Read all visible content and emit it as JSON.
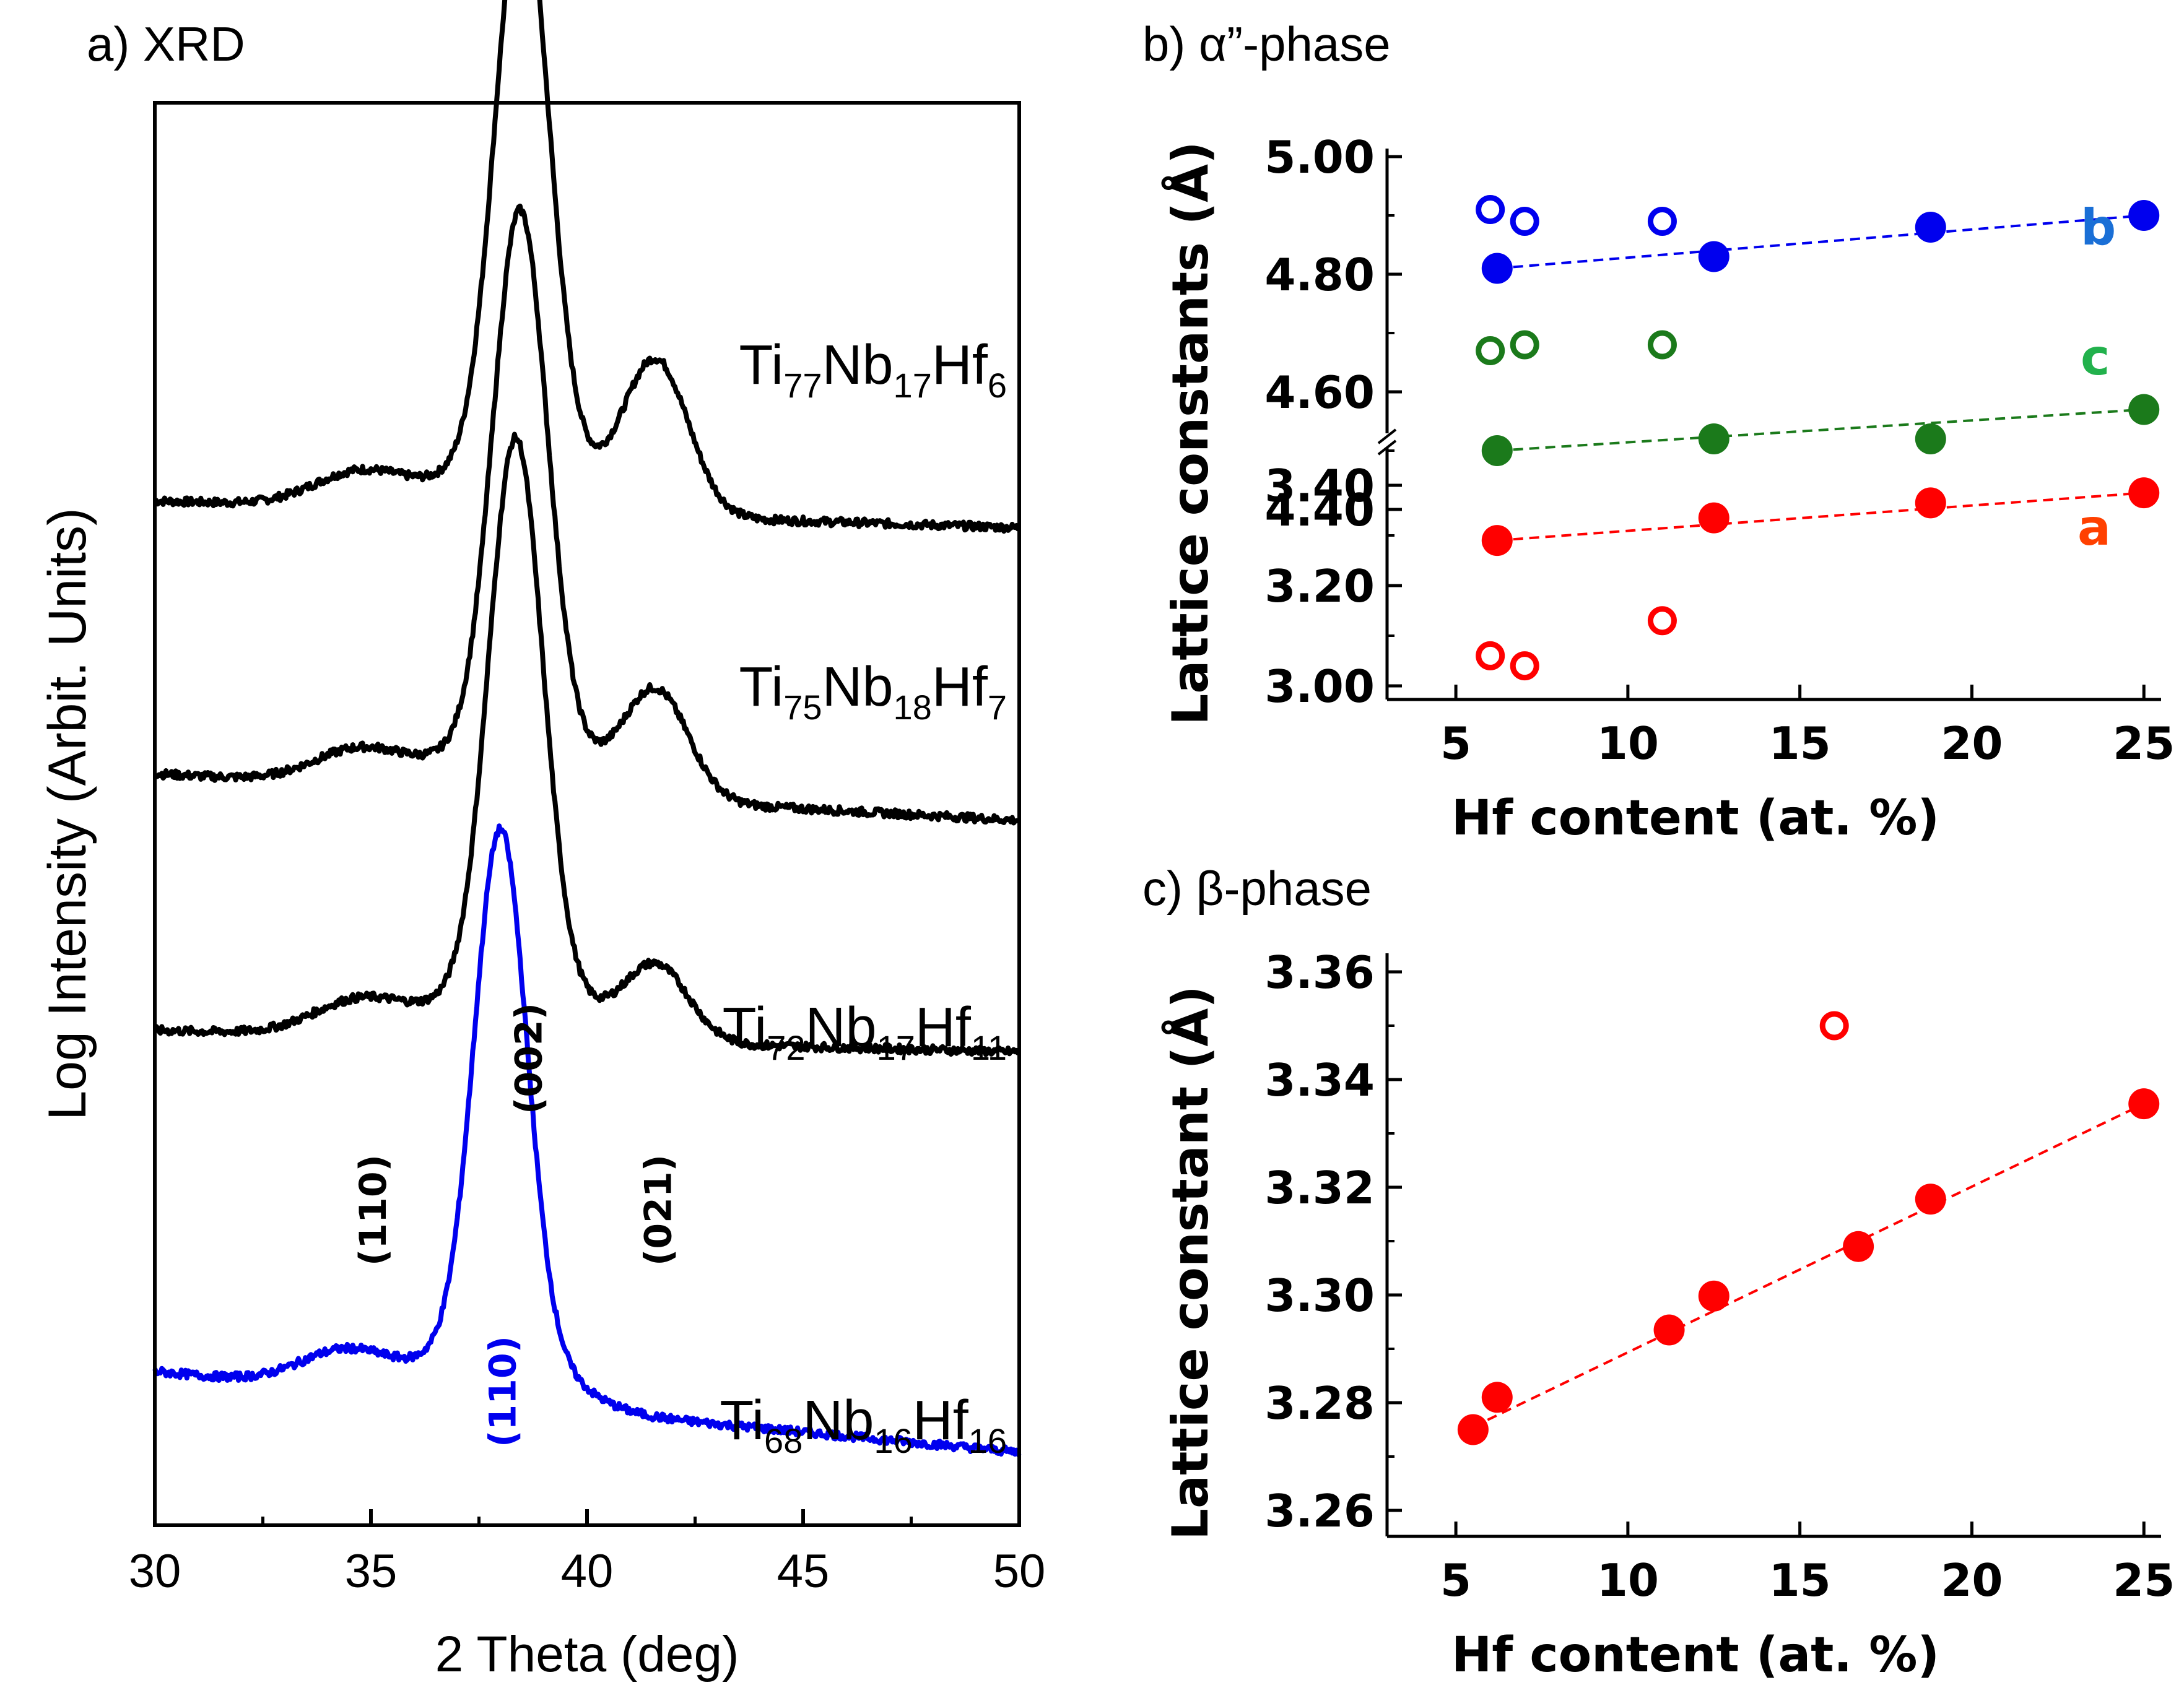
{
  "chart_data": [
    {
      "type": "line",
      "panel_label": "a) XRD",
      "xlabel": "2 Theta (deg)",
      "ylabel": "Log Intensity (Arbit. Units)",
      "xlim": [
        30,
        50
      ],
      "xticks": [
        30,
        35,
        40,
        45,
        50
      ],
      "xtick_labels": [
        "30",
        "35",
        "40",
        "45",
        "50"
      ],
      "y_axis": "arbitrary log intensity with vertical offsets, no tick labels",
      "series": [
        {
          "name": "Ti77Nb17Hf6",
          "label": {
            "pre": "Ti",
            "sub1": "77",
            "mid": "Nb",
            "sub2": "17",
            "post": "Hf",
            "sub3": "6"
          },
          "color": "#000000",
          "profile": {
            "baseline_start": 5.5,
            "baseline_end": 5.35,
            "peak_002_center": 38.5,
            "peak_002_height": 3.1,
            "peak_021_center": 41.6,
            "peak_021_height": 0.85,
            "shoulder_110_center": 34.8,
            "shoulder_110_height": 0.2
          }
        },
        {
          "name": "Ti75Nb18Hf7",
          "label": {
            "pre": "Ti",
            "sub1": "75",
            "mid": "Nb",
            "sub2": "18",
            "post": "Hf",
            "sub3": "7"
          },
          "color": "#000000",
          "profile": {
            "baseline_start": 3.98,
            "baseline_end": 3.72,
            "peak_002_center": 38.45,
            "peak_002_height": 2.9,
            "peak_021_center": 41.6,
            "peak_021_height": 0.6,
            "shoulder_110_center": 34.8,
            "shoulder_110_height": 0.2
          }
        },
        {
          "name": "Ti72Nb17Hf11",
          "label": {
            "pre": "Ti",
            "sub1": "72",
            "mid": "Nb",
            "sub2": "17",
            "post": "Hf",
            "sub3": "11"
          },
          "color": "#000000",
          "profile": {
            "baseline_start": 2.55,
            "baseline_end": 2.43,
            "peak_002_center": 38.35,
            "peak_002_height": 3.0,
            "peak_021_center": 41.6,
            "peak_021_height": 0.42,
            "shoulder_110_center": 34.8,
            "shoulder_110_height": 0.2
          }
        },
        {
          "name": "Ti68Nb16Hf16",
          "label": {
            "pre": "Ti",
            "sub1": "68",
            "mid": "Nb",
            "sub2": "16",
            "post": "Hf",
            "sub3": "16"
          },
          "color": "#0000ee",
          "profile": {
            "baseline_start": 0.65,
            "baseline_end": 0.2,
            "peak_110_center": 38.0,
            "peak_110_height": 2.8,
            "shoulder_110_center": 34.5,
            "shoulder_110_height": 0.22
          }
        }
      ],
      "annotations": [
        {
          "text": "(110)",
          "x": 35.0,
          "color": "#000000"
        },
        {
          "text": "(002)",
          "x": 38.6,
          "color": "#000000"
        },
        {
          "text": "(021)",
          "x": 41.6,
          "color": "#000000"
        },
        {
          "text": "(110)",
          "x": 38.0,
          "color": "#0000ee"
        }
      ]
    },
    {
      "type": "scatter",
      "panel_label": "b) α”-phase",
      "xlabel": "Hf content (at. %)",
      "ylabel": "Lattice constants (Å)",
      "xlim": [
        3,
        25.5
      ],
      "xticks": [
        5,
        10,
        15,
        20,
        25
      ],
      "xtick_labels": [
        "5",
        "10",
        "15",
        "20",
        "25"
      ],
      "y_break": {
        "lower_range": [
          2.95,
          3.48
        ],
        "upper_range": [
          4.3,
          5.0
        ]
      },
      "yticks_lower": [
        3.0,
        3.2,
        3.4
      ],
      "yticks_lower_labels": [
        "3.00",
        "3.20",
        "3.40"
      ],
      "yticks_upper": [
        4.4,
        4.6,
        4.8,
        5.0
      ],
      "yticks_upper_labels": [
        "4.40",
        "4.60",
        "4.80",
        "5.00"
      ],
      "series": [
        {
          "name": "b",
          "color": "#0000ee",
          "label_color": "#1a6fd6",
          "filled": [
            [
              6.2,
              4.81
            ],
            [
              12.5,
              4.83
            ],
            [
              18.8,
              4.88
            ],
            [
              25,
              4.9
            ]
          ],
          "open": [
            [
              6.0,
              4.91
            ],
            [
              7.0,
              4.89
            ],
            [
              11.0,
              4.89
            ]
          ],
          "fit": [
            [
              6.2,
              4.81
            ],
            [
              25,
              4.9
            ]
          ]
        },
        {
          "name": "c",
          "color": "#1b7a1b",
          "label_color": "#22b14c",
          "filled": [
            [
              6.2,
              4.5
            ],
            [
              12.5,
              4.52
            ],
            [
              18.8,
              4.52
            ],
            [
              25,
              4.57
            ]
          ],
          "open": [
            [
              6.0,
              4.67
            ],
            [
              7.0,
              4.68
            ],
            [
              11.0,
              4.68
            ]
          ],
          "fit": [
            [
              6.2,
              4.5
            ],
            [
              25,
              4.57
            ]
          ]
        },
        {
          "name": "a",
          "color": "#ff0000",
          "label_color": "#ff4000",
          "filled": [
            [
              6.2,
              3.29
            ],
            [
              12.5,
              3.335
            ],
            [
              18.8,
              3.365
            ],
            [
              25,
              3.385
            ]
          ],
          "open": [
            [
              6.0,
              3.06
            ],
            [
              7.0,
              3.04
            ],
            [
              11.0,
              3.13
            ]
          ],
          "fit": [
            [
              6.2,
              3.29
            ],
            [
              25,
              3.385
            ]
          ]
        }
      ]
    },
    {
      "type": "scatter",
      "panel_label": "c) β-phase",
      "xlabel": "Hf content (at. %)",
      "ylabel": "Lattice constant (Å)",
      "xlim": [
        3,
        25.5
      ],
      "ylim": [
        3.255,
        3.36
      ],
      "xticks": [
        5,
        10,
        15,
        20,
        25
      ],
      "xtick_labels": [
        "5",
        "10",
        "15",
        "20",
        "25"
      ],
      "yticks": [
        3.26,
        3.28,
        3.3,
        3.32,
        3.34,
        3.36
      ],
      "ytick_labels": [
        "3.26",
        "3.28",
        "3.30",
        "3.32",
        "3.34",
        "3.36"
      ],
      "series": [
        {
          "name": "beta",
          "color": "#ff0000",
          "filled": [
            [
              5.5,
              3.275
            ],
            [
              6.2,
              3.281
            ],
            [
              11.2,
              3.2935
            ],
            [
              12.5,
              3.2998
            ],
            [
              16.7,
              3.309
            ],
            [
              18.8,
              3.3178
            ],
            [
              25,
              3.3355
            ]
          ],
          "open": [
            [
              16.0,
              3.35
            ]
          ],
          "fit": [
            [
              5.5,
              3.2755
            ],
            [
              25,
              3.3355
            ]
          ]
        }
      ]
    }
  ]
}
